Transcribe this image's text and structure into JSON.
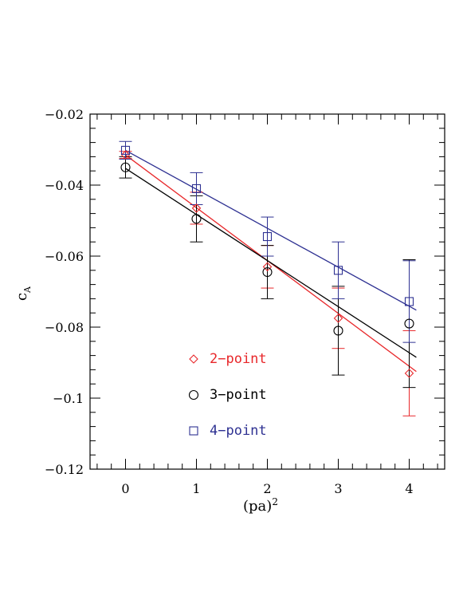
{
  "chart_data": {
    "type": "scatter",
    "title": "",
    "xlabel": "(pa)",
    "xlabel_sup": "2",
    "ylabel": "c",
    "ylabel_sub": "A",
    "xlim": [
      -0.5,
      4.5
    ],
    "ylim": [
      -0.12,
      -0.02
    ],
    "xticks": [
      0,
      1,
      2,
      3,
      4
    ],
    "xtick_labels": [
      "0",
      "1",
      "2",
      "3",
      "4"
    ],
    "yticks": [
      -0.12,
      -0.1,
      -0.08,
      -0.06,
      -0.04,
      -0.02
    ],
    "ytick_labels": [
      "−0.12",
      "−0.1",
      "−0.08",
      "−0.06",
      "−0.04",
      "−0.02"
    ],
    "grid": false,
    "legend_position": "lower-left",
    "series": [
      {
        "name": "2−point",
        "marker": "diamond",
        "color": "#e8272a",
        "x": [
          0,
          1,
          2,
          3,
          4
        ],
        "y": [
          -0.0315,
          -0.0465,
          -0.063,
          -0.0775,
          -0.093
        ],
        "yerr": [
          0.001,
          0.0045,
          0.006,
          0.0085,
          0.012
        ],
        "fit": {
          "x": [
            0,
            4.1
          ],
          "y": [
            -0.0315,
            -0.0925
          ]
        }
      },
      {
        "name": "3−point",
        "marker": "circle",
        "color": "#000000",
        "x": [
          0,
          1,
          2,
          3,
          4
        ],
        "y": [
          -0.035,
          -0.0495,
          -0.0645,
          -0.081,
          -0.079
        ],
        "yerr": [
          0.003,
          0.0065,
          0.0075,
          0.0125,
          0.018
        ],
        "fit": {
          "x": [
            0,
            4.1
          ],
          "y": [
            -0.0353,
            -0.0885
          ]
        }
      },
      {
        "name": "4−point",
        "marker": "square",
        "color": "#2e3192",
        "x": [
          0,
          1,
          2,
          3,
          4
        ],
        "y": [
          -0.0302,
          -0.041,
          -0.0545,
          -0.064,
          -0.0728
        ],
        "yerr": [
          0.0025,
          0.0045,
          0.0055,
          0.008,
          0.0115
        ],
        "fit": {
          "x": [
            0,
            4.1
          ],
          "y": [
            -0.0302,
            -0.0752
          ]
        }
      }
    ]
  }
}
